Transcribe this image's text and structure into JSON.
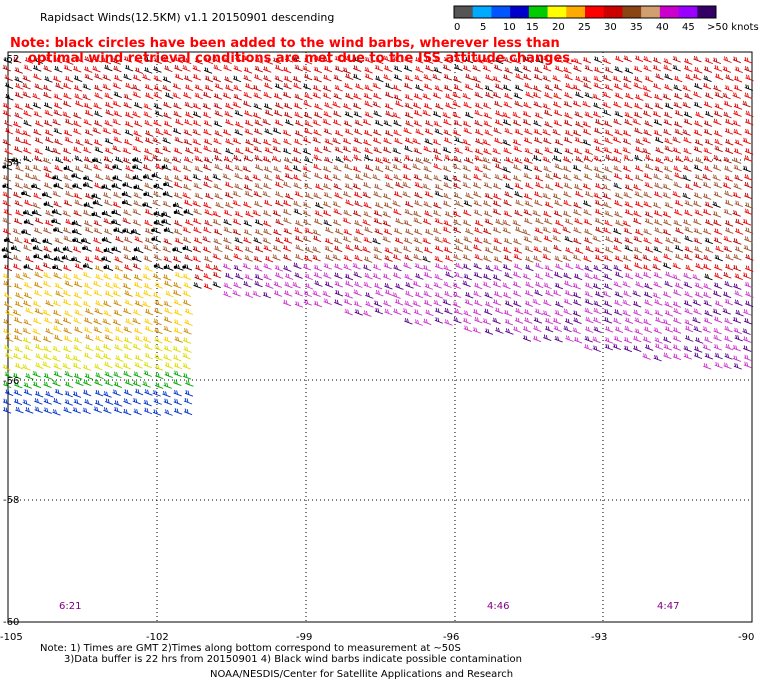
{
  "header": {
    "title": "Rapidsact Winds(12.5KM) v1.1 20150901 descending"
  },
  "note": {
    "line1": "Note: black circles have been added to the wind barbs, wherever less than",
    "line2": "optimal wind retrieval conditions are met due to the ISS attitude changes."
  },
  "legend": {
    "labels": [
      "0",
      "5",
      "10",
      "15",
      "20",
      "25",
      "30",
      "35",
      "40",
      "45",
      ">50 knots"
    ],
    "colors": [
      "#555555",
      "#00aaff",
      "#0055ff",
      "#0000cc",
      "#00cc00",
      "#ffff00",
      "#ffaa00",
      "#ff0000",
      "#cc0000",
      "#8b4513",
      "#d2a070",
      "#cc00cc",
      "#9900ff",
      "#330066"
    ]
  },
  "axes": {
    "x_ticks": [
      "-105",
      "-102",
      "-99",
      "-96",
      "-93",
      "-90"
    ],
    "y_ticks": [
      "-52",
      "-54",
      "-56",
      "-58",
      "-60"
    ],
    "lon_range": [
      -105,
      -90
    ],
    "lat_range": [
      -60,
      -52
    ]
  },
  "times": [
    {
      "label": "6:21",
      "lon": -104.1
    },
    {
      "label": "4:46",
      "lon": -95.1
    },
    {
      "label": "4:47",
      "lon": -91.6
    }
  ],
  "footer": {
    "line1": "Note: 1) Times are GMT 2)Times along bottom correspond to measurement at ~50S",
    "line2": "3)Data buffer is 22 hrs from 20150901 4) Black wind barbs indicate possible contamination",
    "line3": "NOAA/NESDIS/Center for Satellite Applications and Research"
  }
}
